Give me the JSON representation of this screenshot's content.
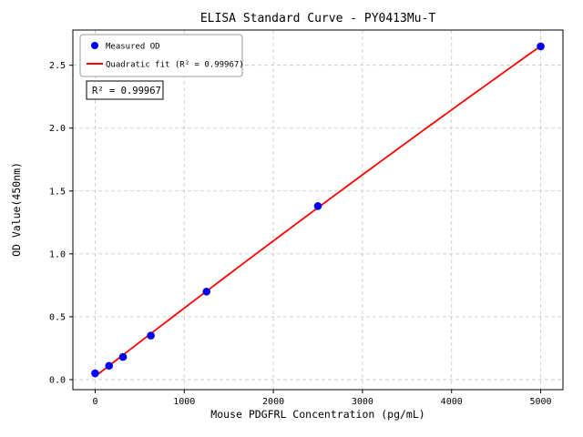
{
  "chart_data": {
    "type": "scatter",
    "title": "ELISA Standard Curve - PY0413Mu-T",
    "xlabel": "Mouse PDGFRL Concentration (pg/mL)",
    "ylabel": "OD Value(450nm)",
    "x": [
      0,
      156.25,
      312.5,
      625,
      1250,
      2500,
      5000
    ],
    "y": [
      0.05,
      0.11,
      0.18,
      0.35,
      0.7,
      1.38,
      2.65
    ],
    "fit_type": "quadratic",
    "legend": {
      "position": "upper left",
      "entries": [
        "Measured OD",
        "Quadratic fit (R² = 0.99967)"
      ]
    },
    "annotation": "R² = 0.99967",
    "xticks": [
      0,
      1000,
      2000,
      3000,
      4000,
      5000
    ],
    "xtick_labels": [
      "0",
      "1000",
      "2000",
      "3000",
      "4000",
      "5000"
    ],
    "yticks": [
      0.0,
      0.5,
      1.0,
      1.5,
      2.0,
      2.5
    ],
    "ytick_labels": [
      "0.0",
      "0.5",
      "1.0",
      "1.5",
      "2.0",
      "2.5"
    ],
    "xlim": [
      -250,
      5250
    ],
    "ylim": [
      -0.08,
      2.78
    ],
    "grid": true,
    "colors": {
      "points": "#0000ee",
      "line": "#ff0000",
      "grid": "#c4c4c4",
      "legend_border": "#9a9a9a",
      "annotation_border": "#000000"
    }
  }
}
